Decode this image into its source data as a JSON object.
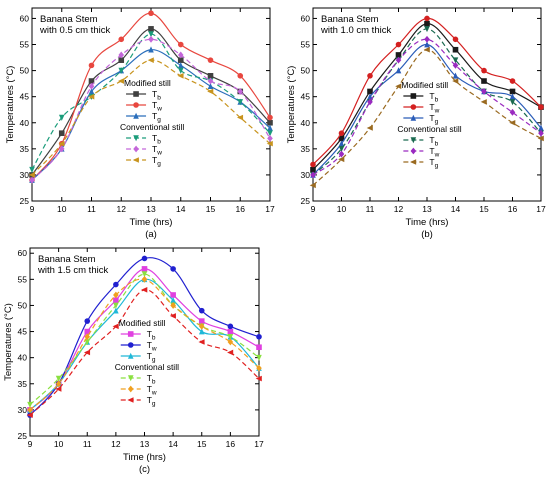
{
  "chart_data": [
    {
      "type": "line",
      "panel_label": "(a)",
      "annotation": [
        "Banana Stem",
        "with 0.5 cm thick"
      ],
      "xlabel": "Time (hrs)",
      "ylabel": "Temperatures (°C)",
      "xlim": [
        9,
        17
      ],
      "ylim": [
        25,
        62
      ],
      "xticks": [
        9,
        10,
        11,
        12,
        13,
        14,
        15,
        16,
        17
      ],
      "yticks": [
        25,
        30,
        35,
        40,
        45,
        50,
        55,
        60
      ],
      "x": [
        9,
        10,
        11,
        12,
        13,
        14,
        15,
        16,
        17
      ],
      "legend_groups": [
        "Modified still",
        "Conventional still"
      ],
      "series": [
        {
          "name": "T",
          "sub": "b",
          "group": "Modified still",
          "color": "#404040",
          "marker": "square",
          "dash": "",
          "values": [
            30,
            38,
            48,
            52,
            58,
            52,
            49,
            46,
            40
          ]
        },
        {
          "name": "T",
          "sub": "w",
          "group": "Modified still",
          "color": "#e8473f",
          "marker": "circle",
          "dash": "",
          "values": [
            29,
            36,
            51,
            56,
            61,
            55,
            52,
            49,
            41
          ]
        },
        {
          "name": "T",
          "sub": "g",
          "group": "Modified still",
          "color": "#2a6ebb",
          "marker": "triangle-up",
          "dash": "",
          "values": [
            29,
            35,
            46,
            50,
            54,
            51,
            47,
            44,
            39
          ]
        },
        {
          "name": "T",
          "sub": "b",
          "group": "Conventional still",
          "color": "#1a9c7a",
          "marker": "triangle-down",
          "dash": "5,3",
          "values": [
            31,
            41,
            45,
            50,
            57,
            50,
            48,
            44,
            38
          ]
        },
        {
          "name": "T",
          "sub": "w",
          "group": "Conventional still",
          "color": "#c366d9",
          "marker": "diamond",
          "dash": "5,3",
          "values": [
            29,
            35,
            47,
            53,
            56,
            53,
            48,
            46,
            37
          ]
        },
        {
          "name": "T",
          "sub": "g",
          "group": "Conventional still",
          "color": "#c8941e",
          "marker": "triangle-left",
          "dash": "5,3",
          "values": [
            30,
            36,
            45,
            48,
            52,
            49,
            46,
            41,
            36
          ]
        }
      ]
    },
    {
      "type": "line",
      "panel_label": "(b)",
      "annotation": [
        "Banana Stem",
        "with 1.0 cm thick"
      ],
      "xlabel": "Time (hrs)",
      "ylabel": "Temperatures (°C)",
      "xlim": [
        9,
        17
      ],
      "ylim": [
        25,
        62
      ],
      "xticks": [
        9,
        10,
        11,
        12,
        13,
        14,
        15,
        16,
        17
      ],
      "yticks": [
        25,
        30,
        35,
        40,
        45,
        50,
        55,
        60
      ],
      "x": [
        9,
        10,
        11,
        12,
        13,
        14,
        15,
        16,
        17
      ],
      "legend_groups": [
        "Modified still",
        "Conventional still"
      ],
      "series": [
        {
          "name": "T",
          "sub": "b",
          "group": "Modified still",
          "color": "#1a1a1a",
          "marker": "square",
          "dash": "",
          "values": [
            31,
            37,
            46,
            53,
            59,
            54,
            48,
            46,
            43
          ]
        },
        {
          "name": "T",
          "sub": "w",
          "group": "Modified still",
          "color": "#d42020",
          "marker": "circle",
          "dash": "",
          "values": [
            32,
            38,
            49,
            55,
            60,
            56,
            50,
            48,
            43
          ]
        },
        {
          "name": "T",
          "sub": "g",
          "group": "Modified still",
          "color": "#2a5cb8",
          "marker": "triangle-up",
          "dash": "",
          "values": [
            30,
            36,
            45,
            50,
            55,
            49,
            46,
            45,
            39
          ]
        },
        {
          "name": "T",
          "sub": "b",
          "group": "Conventional still",
          "color": "#1a6a50",
          "marker": "triangle-down",
          "dash": "5,3",
          "values": [
            30,
            35,
            44,
            52,
            58,
            52,
            46,
            44,
            38
          ]
        },
        {
          "name": "T",
          "sub": "w",
          "group": "Conventional still",
          "color": "#9a2ac0",
          "marker": "diamond",
          "dash": "5,3",
          "values": [
            30,
            34,
            44,
            52,
            56,
            51,
            46,
            42,
            38
          ]
        },
        {
          "name": "T",
          "sub": "g",
          "group": "Conventional still",
          "color": "#9a6a20",
          "marker": "triangle-left",
          "dash": "5,3",
          "values": [
            28,
            33,
            39,
            47,
            54,
            48,
            44,
            40,
            37
          ]
        }
      ]
    },
    {
      "type": "line",
      "panel_label": "(c)",
      "annotation": [
        "Banana Stem",
        "with 1.5 cm thick"
      ],
      "xlabel": "Time (hrs)",
      "ylabel": "Temperatures (°C)",
      "xlim": [
        9,
        17
      ],
      "ylim": [
        25,
        61
      ],
      "xticks": [
        9,
        10,
        11,
        12,
        13,
        14,
        15,
        16,
        17
      ],
      "yticks": [
        25,
        30,
        35,
        40,
        45,
        50,
        55,
        60
      ],
      "x": [
        9,
        10,
        11,
        12,
        13,
        14,
        15,
        16,
        17
      ],
      "legend_groups": [
        "Modified still",
        "Conventional still"
      ],
      "series": [
        {
          "name": "T",
          "sub": "b",
          "group": "Modified still",
          "color": "#e040e0",
          "marker": "square",
          "dash": "",
          "values": [
            30,
            35,
            45,
            51,
            57,
            52,
            47,
            45,
            42
          ]
        },
        {
          "name": "T",
          "sub": "w",
          "group": "Modified still",
          "color": "#2020d0",
          "marker": "circle",
          "dash": "",
          "values": [
            29,
            35,
            47,
            54,
            59,
            57,
            49,
            46,
            44
          ]
        },
        {
          "name": "T",
          "sub": "g",
          "group": "Modified still",
          "color": "#20b8d8",
          "marker": "triangle-up",
          "dash": "",
          "values": [
            30,
            35,
            43,
            49,
            55,
            51,
            45,
            44,
            38
          ]
        },
        {
          "name": "T",
          "sub": "b",
          "group": "Conventional still",
          "color": "#8ae040",
          "marker": "triangle-down",
          "dash": "5,3",
          "values": [
            31,
            36,
            43,
            50,
            56,
            50,
            46,
            44,
            40
          ]
        },
        {
          "name": "T",
          "sub": "w",
          "group": "Conventional still",
          "color": "#f0a020",
          "marker": "diamond",
          "dash": "5,3",
          "values": [
            30,
            35,
            44,
            52,
            55,
            50,
            46,
            43,
            38
          ]
        },
        {
          "name": "T",
          "sub": "g",
          "group": "Conventional still",
          "color": "#e02020",
          "marker": "triangle-left",
          "dash": "5,3",
          "values": [
            29,
            34,
            41,
            46,
            53,
            48,
            43,
            41,
            36
          ]
        }
      ]
    }
  ]
}
